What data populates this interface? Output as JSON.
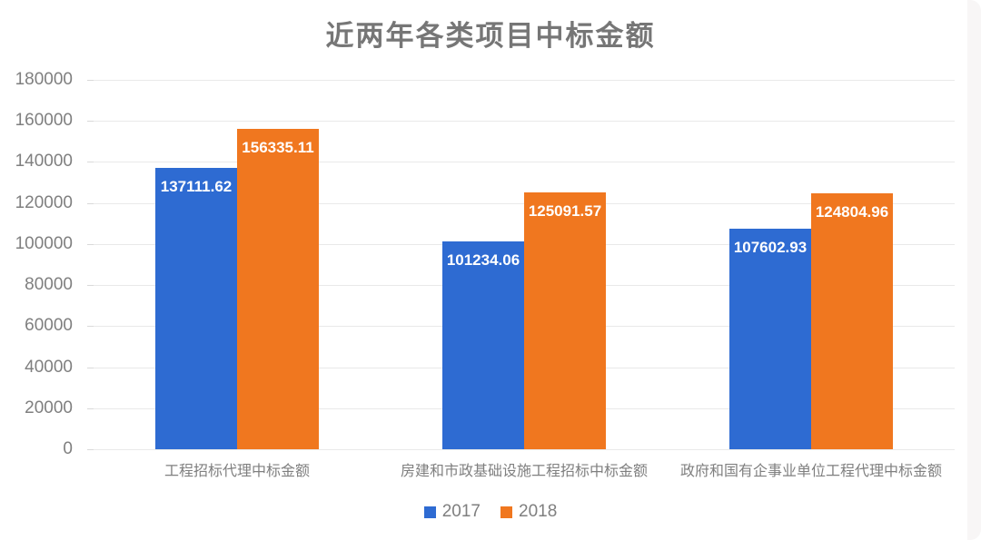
{
  "chart_data": {
    "type": "bar",
    "title": "近两年各类项目中标金额",
    "categories": [
      "工程招标代理中标金额",
      "房建和市政基础设施工程招标中标金额",
      "政府和国有企事业单位工程代理中标金额"
    ],
    "series": [
      {
        "name": "2017",
        "color": "#2e6bd2",
        "values": [
          137111.62,
          101234.06,
          107602.93
        ],
        "value_labels": [
          "137111.62",
          "101234.06",
          "107602.93"
        ]
      },
      {
        "name": "2018",
        "color": "#f0771f",
        "values": [
          156335.11,
          125091.57,
          124804.96
        ],
        "value_labels": [
          "156335.11",
          "125091.57",
          "124804.96"
        ]
      }
    ],
    "ylim": [
      0,
      180000
    ],
    "ytick_step": 20000,
    "ytick_labels": [
      "0",
      "20000",
      "40000",
      "60000",
      "80000",
      "100000",
      "120000",
      "140000",
      "160000",
      "180000"
    ],
    "grid": true,
    "legend_position": "bottom",
    "value_label_position": "inside-top",
    "colors": {
      "title_text": "#767676",
      "axis_text": "#7f7f7f",
      "gridline": "#e9e9e9",
      "tick": "#d9d9d9",
      "bar_label_text": "#ffffff",
      "background": "#ffffff"
    }
  }
}
